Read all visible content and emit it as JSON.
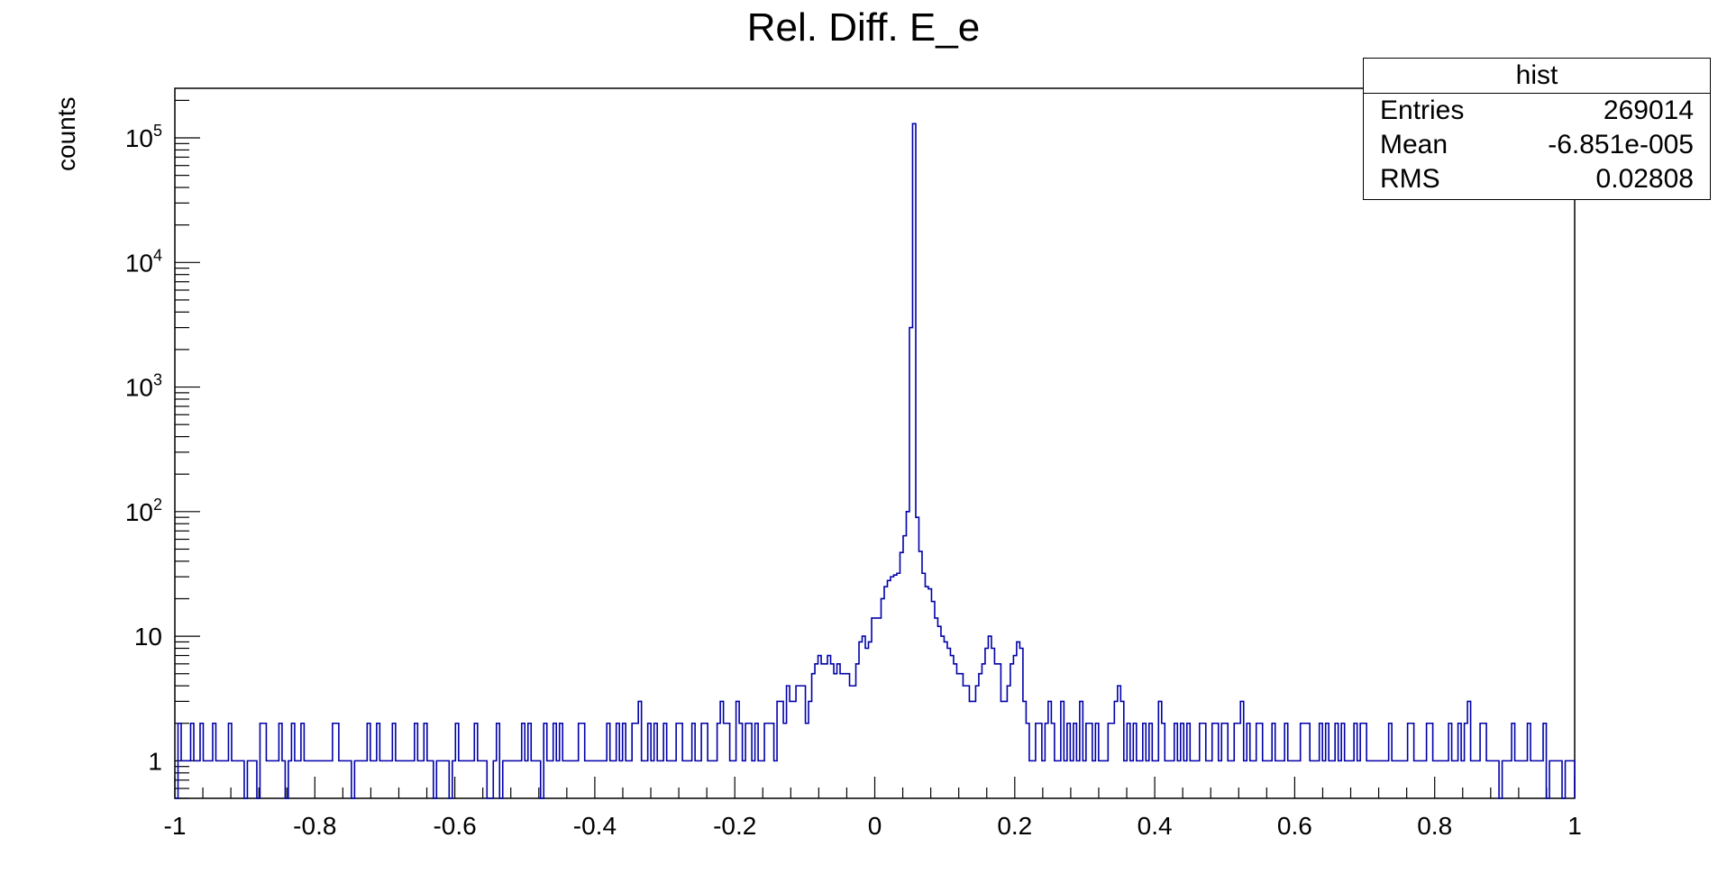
{
  "chart_data": {
    "type": "histogram",
    "title": "Rel. Diff. E_e",
    "xlabel": "",
    "ylabel": "counts",
    "xlim": [
      -1,
      1
    ],
    "ylim": [
      0.5,
      250000
    ],
    "yscale": "log",
    "line_color": "#0000aa",
    "xticks": [
      "-1",
      "-0.8",
      "-0.6",
      "-0.4",
      "-0.2",
      "0",
      "0.2",
      "0.4",
      "0.6",
      "0.8",
      "1"
    ],
    "yticks": [
      {
        "value": 1,
        "label": "1"
      },
      {
        "value": 10,
        "label": "10"
      },
      {
        "value": 100,
        "base": "10",
        "exp": "2"
      },
      {
        "value": 1000,
        "base": "10",
        "exp": "3"
      },
      {
        "value": 10000,
        "base": "10",
        "exp": "4"
      },
      {
        "value": 100000,
        "base": "10",
        "exp": "5"
      }
    ],
    "bins": {
      "nbins": 400,
      "min": -1,
      "max": 1
    },
    "counts": [
      0,
      2,
      1,
      1,
      1,
      2,
      1,
      1,
      2,
      1,
      1,
      1,
      2,
      1,
      1,
      1,
      1,
      2,
      1,
      1,
      1,
      1,
      0,
      1,
      1,
      1,
      0,
      2,
      2,
      1,
      1,
      1,
      1,
      2,
      1,
      0,
      1,
      2,
      1,
      1,
      2,
      1,
      1,
      1,
      1,
      1,
      1,
      1,
      1,
      1,
      2,
      2,
      1,
      1,
      1,
      1,
      0,
      1,
      1,
      1,
      1,
      2,
      1,
      1,
      2,
      1,
      1,
      1,
      1,
      2,
      1,
      1,
      1,
      1,
      1,
      1,
      2,
      1,
      1,
      2,
      1,
      1,
      0,
      1,
      1,
      1,
      1,
      0,
      1,
      2,
      1,
      1,
      1,
      1,
      1,
      2,
      1,
      1,
      1,
      0,
      0,
      1,
      2,
      0,
      1,
      1,
      1,
      1,
      1,
      1,
      2,
      1,
      2,
      1,
      1,
      1,
      0,
      2,
      1,
      1,
      2,
      1,
      2,
      1,
      1,
      1,
      1,
      1,
      2,
      2,
      1,
      1,
      1,
      1,
      1,
      1,
      1,
      2,
      1,
      1,
      2,
      1,
      2,
      1,
      1,
      2,
      2,
      3,
      1,
      1,
      2,
      1,
      2,
      1,
      1,
      2,
      1,
      1,
      1,
      2,
      2,
      1,
      1,
      1,
      2,
      1,
      1,
      2,
      2,
      1,
      1,
      1,
      2,
      3,
      2,
      2,
      1,
      1,
      3,
      2,
      1,
      2,
      2,
      1,
      2,
      1,
      1,
      2,
      2,
      2,
      1,
      3,
      3,
      2,
      4,
      3,
      3,
      4,
      4,
      4,
      2,
      3,
      5,
      6,
      7,
      6,
      6,
      7,
      6,
      5,
      6,
      5,
      5,
      5,
      4,
      4,
      6,
      9,
      10,
      8,
      9,
      14,
      14,
      14,
      20,
      25,
      28,
      30,
      31,
      32,
      47,
      64,
      100,
      3000,
      130000,
      90,
      48,
      32,
      25,
      24,
      19,
      14,
      12,
      10,
      9,
      8,
      7,
      6,
      5,
      5,
      4,
      4,
      3,
      3,
      4,
      5,
      6,
      8,
      10,
      8,
      6,
      6,
      3,
      3,
      4,
      6,
      7,
      9,
      8,
      3,
      2,
      1,
      1,
      2,
      2,
      1,
      2,
      3,
      2,
      1,
      1,
      3,
      1,
      2,
      1,
      2,
      1,
      3,
      1,
      2,
      2,
      1,
      2,
      1,
      1,
      1,
      2,
      2,
      3,
      4,
      3,
      1,
      2,
      1,
      2,
      1,
      1,
      2,
      1,
      2,
      1,
      1,
      3,
      2,
      1,
      1,
      1,
      2,
      1,
      2,
      1,
      2,
      1,
      1,
      1,
      2,
      2,
      1,
      1,
      2,
      2,
      1,
      2,
      2,
      1,
      1,
      2,
      2,
      3,
      1,
      2,
      1,
      1,
      2,
      2,
      1,
      1,
      1,
      2,
      1,
      1,
      1,
      2,
      1,
      1,
      1,
      1,
      2,
      2,
      2,
      1,
      1,
      1,
      2,
      1,
      2,
      1,
      1,
      2,
      1,
      2,
      1,
      1,
      1,
      2,
      1,
      2,
      2,
      1,
      1,
      1,
      1,
      1,
      1,
      1,
      2,
      1,
      1,
      1,
      1,
      1,
      2,
      2,
      1,
      1,
      1,
      1,
      2,
      2,
      1,
      1,
      1,
      1,
      1,
      2,
      1,
      1,
      2,
      1,
      2,
      3,
      1,
      1,
      1,
      2,
      2,
      1,
      1,
      1,
      1,
      0,
      1,
      1,
      1,
      2,
      1,
      1,
      1,
      1,
      2,
      1,
      1,
      1,
      1,
      2,
      0,
      1,
      1,
      1,
      1,
      0,
      1,
      1,
      1
    ]
  },
  "statbox": {
    "title": "hist",
    "rows": [
      {
        "label": "Entries",
        "value": "269014"
      },
      {
        "label": "Mean",
        "value": "-6.851e-005"
      },
      {
        "label": "RMS",
        "value": "0.02808"
      }
    ]
  }
}
